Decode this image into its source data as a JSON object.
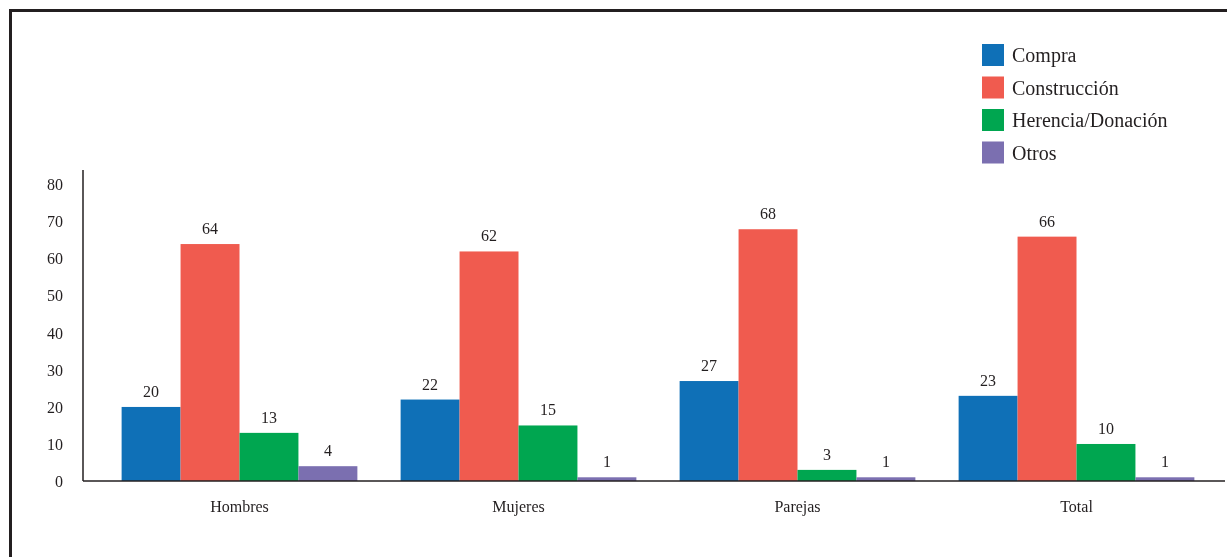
{
  "chart_data": {
    "type": "bar",
    "categories": [
      "Hombres",
      "Mujeres",
      "Parejas",
      "Total"
    ],
    "series": [
      {
        "name": "Compra",
        "color": "#0f70b7",
        "values": [
          20,
          22,
          27,
          23
        ]
      },
      {
        "name": "Construcción",
        "color": "#f05b4f",
        "values": [
          64,
          62,
          68,
          66
        ]
      },
      {
        "name": "Herencia/Donación",
        "color": "#00a650",
        "values": [
          13,
          15,
          3,
          10
        ]
      },
      {
        "name": "Otros",
        "color": "#7b6fb0",
        "values": [
          4,
          1,
          1,
          1
        ]
      }
    ],
    "ylim": [
      0,
      84
    ],
    "yticks": [
      0,
      10,
      20,
      30,
      40,
      50,
      60,
      70,
      80
    ],
    "data_labels": true,
    "legend": "top right",
    "grid": false
  }
}
